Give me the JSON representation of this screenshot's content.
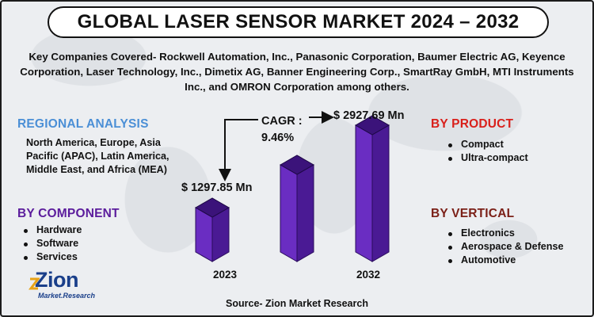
{
  "title": "GLOBAL LASER SENSOR MARKET 2024 – 2032",
  "companies_text": "Key Companies Covered- Rockwell Automation, Inc., Panasonic Corporation, Baumer Electric AG, Keyence Corporation, Laser Technology, Inc., Dimetix AG, Banner Engineering Corp., SmartRay GmbH, MTI Instruments Inc., and OMRON Corporation among others.",
  "regional": {
    "heading": "REGIONAL ANALYSIS",
    "text": "North America, Europe, Asia Pacific (APAC), Latin America, Middle East, and Africa (MEA)"
  },
  "component": {
    "heading": "BY COMPONENT",
    "items": [
      "Hardware",
      "Software",
      "Services"
    ]
  },
  "product": {
    "heading": "BY PRODUCT",
    "items": [
      "Compact",
      "Ultra-compact"
    ]
  },
  "vertical": {
    "heading": "BY VERTICAL",
    "items": [
      "Electronics",
      "Aerospace & Defense",
      "Automotive"
    ]
  },
  "chart": {
    "cagr_label": "CAGR :",
    "cagr_value": "9.46%",
    "start_value": "$ 1297.85 Mn",
    "end_value": "$ 2927.69 Mn",
    "start_year": "2023",
    "end_year": "2032"
  },
  "chart_data": {
    "type": "bar",
    "categories": [
      "2023",
      "",
      "2032"
    ],
    "values": [
      1297.85,
      null,
      2927.69
    ]
  },
  "colors": {
    "bar_front": "#6a2dc2",
    "bar_side": "#4a1a94",
    "bar_top": "#3b137a",
    "accent_blue": "#4b8fd6",
    "accent_purple": "#5b1c9c",
    "accent_red": "#d9201b",
    "accent_brown": "#7b2018"
  },
  "source": "Source- Zion Market Research",
  "logo": {
    "main": "Zion",
    "sub": "Market.Research"
  }
}
